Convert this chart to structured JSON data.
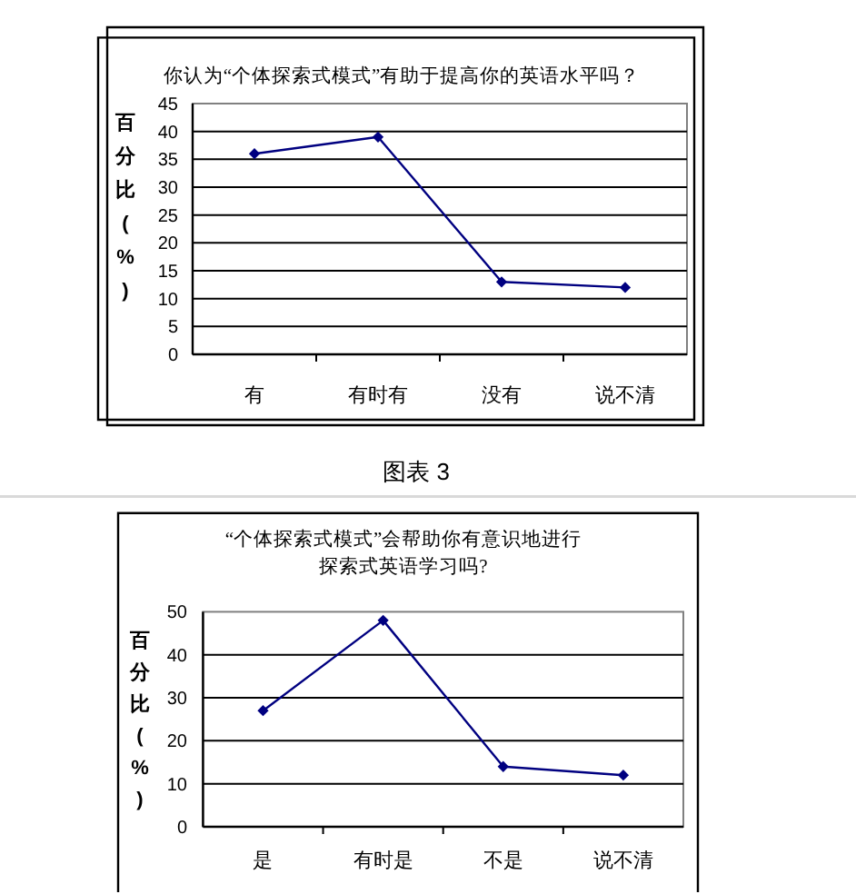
{
  "chart_data": [
    {
      "type": "line",
      "title": "你认为“个体探索式模式”有助于提高你的英语水平吗？",
      "ylabel": "百分比(%)",
      "categories": [
        "有",
        "有时有",
        "没有",
        "说不清"
      ],
      "series": [
        {
          "color": "#000080",
          "values": [
            36,
            39,
            13,
            12
          ]
        }
      ],
      "ylim": [
        0,
        45
      ],
      "yticks": [
        0,
        5,
        10,
        15,
        20,
        25,
        30,
        35,
        40,
        45
      ],
      "grid": "y",
      "marker": "diamond",
      "annotations": [
        "图表 3"
      ]
    },
    {
      "type": "line",
      "title": "“个体探索式模式”会帮助你有意识地进行探索式英语学习吗?",
      "ylabel": "百分比(%)",
      "categories": [
        "是",
        "有时是",
        "不是",
        "说不清"
      ],
      "series": [
        {
          "color": "#000080",
          "values": [
            27,
            48,
            14,
            12
          ]
        }
      ],
      "ylim": [
        0,
        50
      ],
      "yticks": [
        0,
        10,
        20,
        30,
        40,
        50
      ],
      "grid": "y",
      "marker": "diamond"
    }
  ]
}
